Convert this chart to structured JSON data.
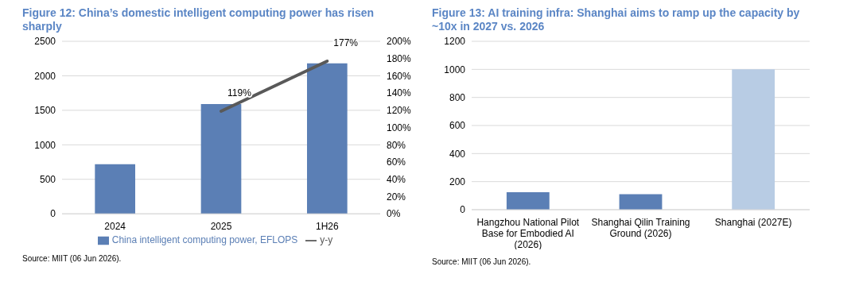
{
  "chart_data": [
    {
      "type": "bar",
      "title": "Figure 12: China’s domestic intelligent computing power has risen sharply",
      "categories": [
        "2024",
        "2025",
        "1H26"
      ],
      "series": [
        {
          "name": "China intelligent computing power, EFLOPS",
          "color": "#5b7fb5",
          "values": [
            720,
            1590,
            2180
          ]
        },
        {
          "name": "y-y",
          "type": "line",
          "axis": "y2",
          "color": "#595959",
          "values": [
            null,
            119,
            177
          ],
          "value_labels": [
            null,
            "119%",
            "177%"
          ]
        }
      ],
      "ylim": [
        0,
        2500
      ],
      "yticks": [
        0,
        500,
        1000,
        1500,
        2000,
        2500
      ],
      "y2lim": [
        0,
        200
      ],
      "y2ticks": [
        {
          "value": 0,
          "label": "0%"
        },
        {
          "value": 20,
          "label": "20%"
        },
        {
          "value": 40,
          "label": "40%"
        },
        {
          "value": 60,
          "label": "60%"
        },
        {
          "value": 80,
          "label": "80%"
        },
        {
          "value": 100,
          "label": "100%"
        },
        {
          "value": 120,
          "label": "120%"
        },
        {
          "value": 140,
          "label": "140%"
        },
        {
          "value": 160,
          "label": "160%"
        },
        {
          "value": 180,
          "label": "180%"
        },
        {
          "value": 200,
          "label": "200%"
        }
      ],
      "grid": "y",
      "legend": "bottom",
      "marker": "none",
      "annotations": [
        "Source: MIIT (06 Jun 2026)."
      ]
    },
    {
      "type": "bar",
      "title": "Figure 13: AI training infra: Shanghai aims to ramp up the capacity by ~10x in 2027 vs. 2026",
      "categories": [
        "Hangzhou National Pilot Base for Embodied AI (2026)",
        "Shanghai Qilin Training Ground (2026)",
        "Shanghai (2027E)"
      ],
      "values": [
        125,
        110,
        1000
      ],
      "colors": [
        "#5b7fb5",
        "#5b7fb5",
        "#b8cce4"
      ],
      "ylim": [
        0,
        1200
      ],
      "yticks": [
        0,
        200,
        400,
        600,
        800,
        1000,
        1200
      ],
      "grid": "y",
      "annotations": [
        "Source: MIIT (06 Jun 2026)."
      ]
    }
  ]
}
